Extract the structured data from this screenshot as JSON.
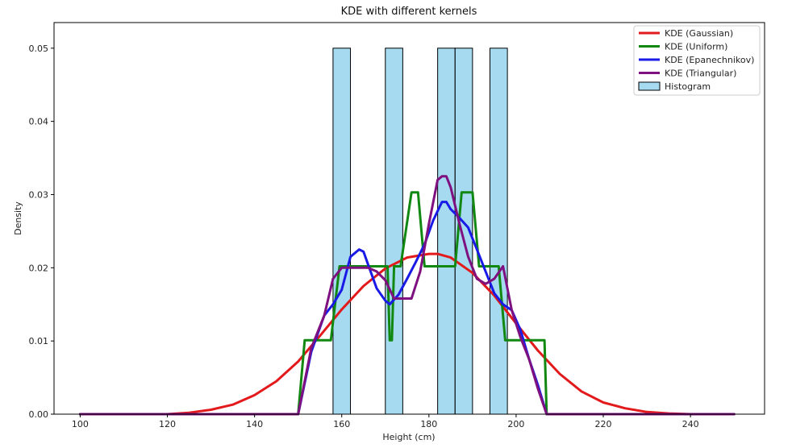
{
  "chart_data": {
    "type": "line",
    "title": "KDE with different kernels",
    "xlabel": "Height (cm)",
    "ylabel": "Density",
    "xlim": [
      94,
      257
    ],
    "ylim": [
      0,
      0.0535
    ],
    "xticks": [
      100,
      120,
      140,
      160,
      180,
      200,
      220,
      240
    ],
    "yticks": [
      0.0,
      0.01,
      0.02,
      0.03,
      0.04,
      0.05
    ],
    "ytick_labels": [
      "0.00",
      "0.01",
      "0.02",
      "0.03",
      "0.04",
      "0.05"
    ],
    "grid": false,
    "legend_position": "top-right",
    "histogram": {
      "name": "Histogram",
      "color": "#87ceeb",
      "edge_color": "#000000",
      "bins": [
        {
          "x0": 158,
          "x1": 162,
          "value": 0.05
        },
        {
          "x0": 170,
          "x1": 174,
          "value": 0.05
        },
        {
          "x0": 182,
          "x1": 186,
          "value": 0.05
        },
        {
          "x0": 186,
          "x1": 190,
          "value": 0.05
        },
        {
          "x0": 194,
          "x1": 198,
          "value": 0.05
        }
      ]
    },
    "series": [
      {
        "name": "KDE (Gaussian)",
        "color": "#e31a1c",
        "x": [
          100,
          110,
          120,
          125,
          130,
          135,
          140,
          145,
          150,
          155,
          160,
          165,
          170,
          175,
          180,
          182,
          185,
          190,
          195,
          200,
          205,
          210,
          215,
          220,
          225,
          230,
          235,
          240,
          250
        ],
        "y": [
          0.0,
          0.0,
          0.0,
          0.0002,
          0.0006,
          0.0013,
          0.0026,
          0.0045,
          0.0072,
          0.0107,
          0.0143,
          0.0175,
          0.0199,
          0.0214,
          0.0219,
          0.0219,
          0.0214,
          0.0193,
          0.0162,
          0.0124,
          0.0087,
          0.0055,
          0.0031,
          0.0016,
          0.0008,
          0.0003,
          0.0001,
          0.0,
          0.0
        ]
      },
      {
        "name": "KDE (Uniform)",
        "color": "#118811",
        "x": [
          100,
          150,
          151.5,
          157.5,
          159.5,
          170.5,
          171,
          171.5,
          172,
          173.5,
          176,
          177.5,
          179,
          180.5,
          181.5,
          183,
          186,
          187.5,
          188.5,
          190,
          191.5,
          193,
          194.5,
          196,
          197.5,
          200.5,
          201.5,
          206.5,
          207,
          250
        ],
        "y": [
          0.0,
          0.0,
          0.0101,
          0.0101,
          0.0202,
          0.0202,
          0.0101,
          0.0101,
          0.0202,
          0.0202,
          0.0303,
          0.0303,
          0.0202,
          0.0202,
          0.0202,
          0.0202,
          0.0202,
          0.0303,
          0.0303,
          0.0303,
          0.0202,
          0.0202,
          0.0202,
          0.0202,
          0.0101,
          0.0101,
          0.0101,
          0.0101,
          0.0,
          0.0
        ]
      },
      {
        "name": "KDE (Epanechnikov)",
        "color": "#1a1ae6",
        "x": [
          100,
          150,
          153,
          156,
          158,
          160,
          162,
          164,
          165,
          166,
          168,
          170,
          171,
          173,
          175,
          177,
          179,
          181,
          183,
          184,
          185,
          187,
          189,
          191,
          193,
          195,
          197,
          199,
          201,
          203,
          205,
          207,
          250
        ],
        "y": [
          0.0,
          0.0,
          0.0085,
          0.0135,
          0.015,
          0.017,
          0.0215,
          0.0225,
          0.0222,
          0.0205,
          0.0172,
          0.0155,
          0.015,
          0.0163,
          0.0185,
          0.0208,
          0.0232,
          0.0265,
          0.029,
          0.029,
          0.028,
          0.0268,
          0.0255,
          0.0225,
          0.0195,
          0.0165,
          0.015,
          0.0142,
          0.0115,
          0.0075,
          0.004,
          0.0,
          0.0
        ]
      },
      {
        "name": "KDE (Triangular)",
        "color": "#7f107f",
        "x": [
          100,
          150,
          153,
          156,
          158,
          160,
          162,
          164,
          166,
          168,
          170,
          172,
          174,
          176,
          178,
          180,
          182,
          183,
          184,
          185,
          187,
          189,
          191,
          193,
          195,
          197,
          199,
          201,
          203,
          205,
          207,
          250
        ],
        "y": [
          0.0,
          0.0,
          0.009,
          0.0135,
          0.0185,
          0.02,
          0.02,
          0.02,
          0.02,
          0.0195,
          0.0183,
          0.0158,
          0.0158,
          0.0158,
          0.0195,
          0.026,
          0.032,
          0.0325,
          0.0325,
          0.031,
          0.026,
          0.0215,
          0.0185,
          0.0178,
          0.0185,
          0.0202,
          0.0142,
          0.0105,
          0.0075,
          0.0035,
          0.0,
          0.0
        ]
      }
    ]
  }
}
